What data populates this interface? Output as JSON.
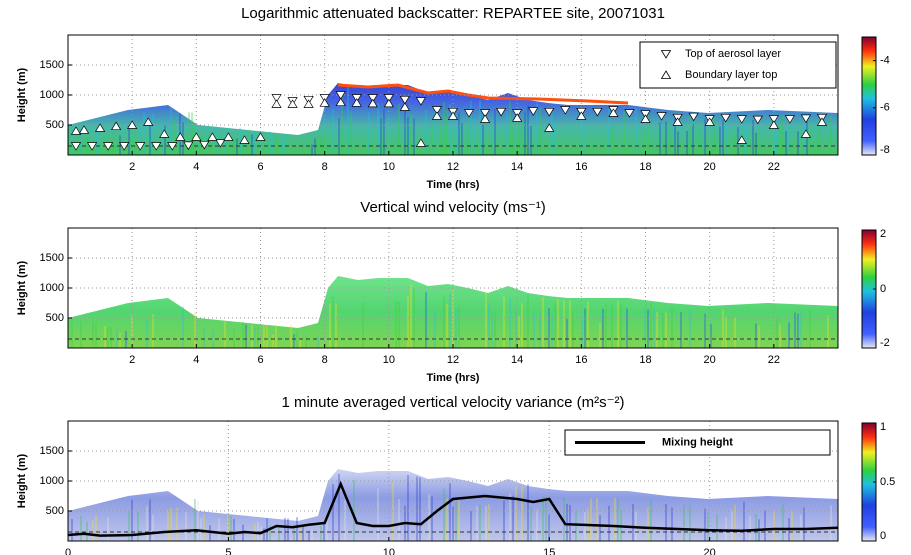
{
  "chart_data": [
    {
      "type": "scatter",
      "title": "Logarithmic attenuated backscatter: REPARTEE site, 20071031",
      "x_label": "Time (hrs)",
      "y_label": "Height (m)",
      "xlim": [
        0,
        24
      ],
      "xticks": [
        2,
        4,
        6,
        8,
        10,
        12,
        14,
        16,
        18,
        20,
        22
      ],
      "ylim": [
        0,
        2000
      ],
      "yticks": [
        500,
        1000,
        1500
      ],
      "grid": true,
      "colorbar": {
        "lim": [
          -8,
          -3
        ],
        "ticks": [
          -8,
          -6,
          -4
        ]
      },
      "series": [
        {
          "name": "Top of aerosol layer",
          "marker": "triangle-down",
          "color": "#ffffff",
          "x": [
            0.25,
            0.75,
            1.25,
            1.75,
            2.25,
            2.75,
            3.25,
            3.75,
            4.25,
            4.75,
            6.5,
            7,
            7.5,
            8,
            8.5,
            9,
            9.5,
            10,
            10.5,
            11,
            11.5,
            12,
            12.5,
            13,
            13.5,
            14,
            14.5,
            15,
            15.5,
            16,
            16.5,
            17,
            17.5,
            18,
            18.5,
            19,
            19.5,
            20,
            20.5,
            21,
            21.5,
            22,
            22.5,
            23,
            23.5
          ],
          "values": [
            150,
            150,
            150,
            150,
            150,
            150,
            150,
            160,
            170,
            200,
            950,
            900,
            920,
            950,
            1000,
            950,
            950,
            950,
            920,
            900,
            750,
            720,
            700,
            700,
            720,
            700,
            730,
            720,
            750,
            720,
            720,
            750,
            700,
            680,
            650,
            620,
            640,
            600,
            620,
            600,
            590,
            600,
            600,
            610,
            620
          ]
        },
        {
          "name": "Boundary layer top",
          "marker": "triangle-up",
          "color": "#ffffff",
          "x": [
            0.25,
            0.5,
            1,
            1.5,
            2,
            2.5,
            3,
            3.5,
            4,
            4.5,
            5,
            5.5,
            6,
            6.5,
            7,
            7.5,
            8,
            8.5,
            9,
            9.5,
            10,
            10.5,
            11,
            11.5,
            12,
            13,
            14,
            15,
            16,
            17,
            18,
            19,
            20,
            21,
            22,
            23,
            23.5
          ],
          "values": [
            400,
            420,
            450,
            480,
            500,
            550,
            350,
            300,
            300,
            300,
            300,
            250,
            300,
            850,
            850,
            850,
            870,
            880,
            870,
            860,
            860,
            800,
            200,
            650,
            650,
            600,
            620,
            450,
            650,
            700,
            600,
            550,
            550,
            250,
            500,
            350,
            550
          ]
        }
      ]
    },
    {
      "type": "heatmap",
      "title": "Vertical wind velocity (ms⁻¹)",
      "x_label": "Time (hrs)",
      "y_label": "Height (m)",
      "xlim": [
        0,
        24
      ],
      "xticks": [
        2,
        4,
        6,
        8,
        10,
        12,
        14,
        16,
        18,
        20,
        22
      ],
      "ylim": [
        0,
        2000
      ],
      "yticks": [
        500,
        1000,
        1500
      ],
      "grid": true,
      "colorbar": {
        "lim": [
          -2,
          2
        ],
        "ticks": [
          -2,
          0,
          2
        ]
      }
    },
    {
      "type": "line",
      "title": "1 minute averaged vertical velocity variance (m²s⁻²)",
      "y_label": "Height (m)",
      "xlim": [
        0,
        24
      ],
      "xticks": [
        0,
        5,
        10,
        15,
        20
      ],
      "ylim": [
        0,
        2000
      ],
      "yticks": [
        500,
        1000,
        1500
      ],
      "grid": true,
      "colorbar": {
        "lim": [
          0,
          1
        ],
        "ticks": [
          0,
          0.5,
          1
        ]
      },
      "series": [
        {
          "name": "Mixing height",
          "color": "#000000",
          "x": [
            0,
            0.5,
            1,
            2,
            3,
            4,
            4.5,
            5,
            5.5,
            6,
            6.5,
            7,
            7.5,
            8,
            8.5,
            9,
            9.5,
            10,
            10.5,
            11,
            11.5,
            12,
            13,
            14,
            14.5,
            15,
            15.5,
            16,
            17,
            18,
            19,
            20,
            21,
            22,
            23,
            24
          ],
          "values": [
            100,
            120,
            90,
            100,
            150,
            180,
            150,
            120,
            150,
            130,
            250,
            230,
            270,
            300,
            950,
            300,
            250,
            250,
            300,
            280,
            500,
            700,
            750,
            700,
            650,
            700,
            280,
            270,
            250,
            220,
            200,
            180,
            170,
            200,
            200,
            220
          ]
        }
      ]
    }
  ]
}
